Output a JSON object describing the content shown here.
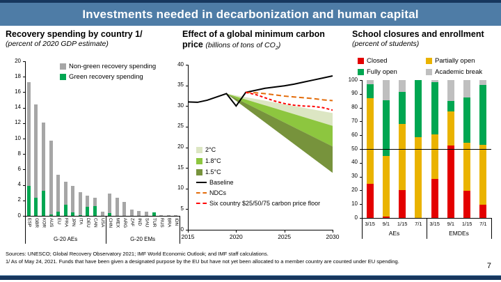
{
  "banner": {
    "title": "Investments needed in decarbonization and human capital",
    "bg_color": "#4e7ca6",
    "strip_color": "#17375e"
  },
  "footer": {
    "sources": "Sources: UNESCO; Global Recovery Observatory 2021; IMF World Economic Outlook; and IMF staff calculations.",
    "note": "1/ As of May 24, 2021. Funds that have been given a designated purpose by the EU but have not yet been allocated to a member country are counted under EU spending.",
    "page": "7"
  },
  "chart_data": [
    {
      "id": "recovery",
      "type": "bar",
      "title": "Recovery spending by country 1/",
      "subtitle": "(percent of 2020 GDP estimate)",
      "ylim": [
        0,
        20
      ],
      "ytick_step": 2,
      "grid": false,
      "legend_position": "top-inside",
      "categories": [
        "ESP",
        "GBR",
        "KOR",
        "AUS",
        "EU",
        "FRA",
        "JPN",
        "ITA",
        "DEU",
        "CAN",
        "USA",
        "CHN",
        "MEX",
        "ARG",
        "ZAF",
        "IND",
        "SAU",
        "TUR",
        "RUS",
        "BRA",
        "IDN"
      ],
      "groups": [
        {
          "label": "G-20 AEs",
          "from": 0,
          "to": 10
        },
        {
          "label": "G-20 EMs",
          "from": 11,
          "to": 20
        }
      ],
      "series": [
        {
          "name": "Green recovery spending",
          "color": "#00a651",
          "values": [
            3.9,
            2.3,
            3.2,
            0.15,
            0.5,
            1.45,
            0.45,
            0.1,
            1.15,
            1.25,
            0,
            0.35,
            0,
            0,
            0,
            0,
            0,
            0.45,
            0,
            0,
            0
          ]
        },
        {
          "name": "Non-green recovery spending",
          "color": "#a6a6a6",
          "values": [
            13.4,
            12.1,
            8.9,
            9.55,
            4.8,
            2.95,
            3.45,
            3.0,
            1.45,
            1.05,
            0.55,
            2.55,
            2.3,
            1.8,
            0.85,
            0.65,
            0.55,
            0,
            0.12,
            0.1,
            0.1
          ]
        }
      ]
    },
    {
      "id": "carbon",
      "type": "area",
      "title": "Effect of a global minimum carbon price",
      "title_line1": "Effect of a global minimum carbon",
      "title_line2": "price",
      "subtitle": "(billions of tons of CO2)",
      "subtitle_pre": "(billions of tons of CO",
      "subtitle_sub": "2",
      "subtitle_post": ")",
      "xlim": [
        2015,
        2030
      ],
      "xticks": [
        2015,
        2020,
        2025,
        2030
      ],
      "ylim": [
        0,
        40
      ],
      "ytick_step": 5,
      "grid": false,
      "legend_position": "lower-left-inside",
      "bands": [
        {
          "name": "2°C",
          "color": "#dce6c3",
          "apex_x": 2019,
          "apex_y": 33,
          "end_x": 2030,
          "end_top": 28.3,
          "end_bottom": 25.2
        },
        {
          "name": "1.8°C",
          "color": "#8dc63f",
          "apex_x": 2019,
          "apex_y": 33,
          "end_x": 2030,
          "end_top": 25.2,
          "end_bottom": 20.2
        },
        {
          "name": "1.5°C",
          "color": "#77933c",
          "apex_x": 2019,
          "apex_y": 33,
          "end_x": 2030,
          "end_top": 20.2,
          "end_bottom": 13.8
        }
      ],
      "lines": [
        {
          "name": "Baseline",
          "color": "#000000",
          "dash": "none",
          "x": [
            2015,
            2016,
            2017,
            2018,
            2019,
            2020,
            2021,
            2022,
            2023,
            2024,
            2025,
            2026,
            2027,
            2028,
            2029,
            2030
          ],
          "y": [
            31.0,
            30.9,
            31.4,
            32.2,
            33.0,
            30.0,
            33.3,
            33.8,
            34.3,
            34.6,
            34.9,
            35.3,
            35.8,
            36.3,
            36.8,
            37.3
          ]
        },
        {
          "name": "NDCs",
          "color": "#e36c0a",
          "dash": "7,4",
          "x": [
            2021,
            2022,
            2023,
            2024,
            2025,
            2026,
            2027,
            2028,
            2029,
            2030
          ],
          "y": [
            33.3,
            33.2,
            33.0,
            32.7,
            32.4,
            32.2,
            32.0,
            31.8,
            31.5,
            31.3
          ]
        },
        {
          "name": "Six country $25/50/75 carbon price floor",
          "color": "#ff0000",
          "dash": "4,3",
          "x": [
            2021,
            2022,
            2023,
            2024,
            2025,
            2026,
            2027,
            2028,
            2029,
            2030
          ],
          "y": [
            33.3,
            32.8,
            32.0,
            31.2,
            30.6,
            30.2,
            30.0,
            29.9,
            29.6,
            29.0
          ]
        }
      ]
    },
    {
      "id": "schools",
      "type": "bar",
      "title": "School closures and enrollment",
      "subtitle": "(percent of students)",
      "ylim": [
        0,
        100
      ],
      "ytick_step": 10,
      "refline": 50,
      "grid": false,
      "legend_position": "top",
      "categories": [
        "3/15",
        "9/1",
        "1/15",
        "7/1",
        "3/15",
        "9/1",
        "1/15",
        "7/1"
      ],
      "groups": [
        {
          "label": "AEs",
          "from": 0,
          "to": 3
        },
        {
          "label": "EMDEs",
          "from": 4,
          "to": 7
        }
      ],
      "series": [
        {
          "name": "Closed",
          "color": "#e30000",
          "values": [
            24.5,
            1,
            20,
            0,
            28.5,
            52.5,
            19.5,
            9.5
          ]
        },
        {
          "name": "Partially open",
          "color": "#eab300",
          "values": [
            62.5,
            44,
            48,
            58.5,
            32,
            25,
            35,
            43.5
          ]
        },
        {
          "name": "Fully open",
          "color": "#00a651",
          "values": [
            10,
            40.5,
            23.5,
            41.5,
            38,
            7.5,
            33,
            43.5
          ]
        },
        {
          "name": "Academic break",
          "color": "#bfbfbf",
          "values": [
            3,
            14.5,
            8.5,
            0,
            1.5,
            15,
            12.5,
            3.5
          ]
        }
      ]
    }
  ]
}
